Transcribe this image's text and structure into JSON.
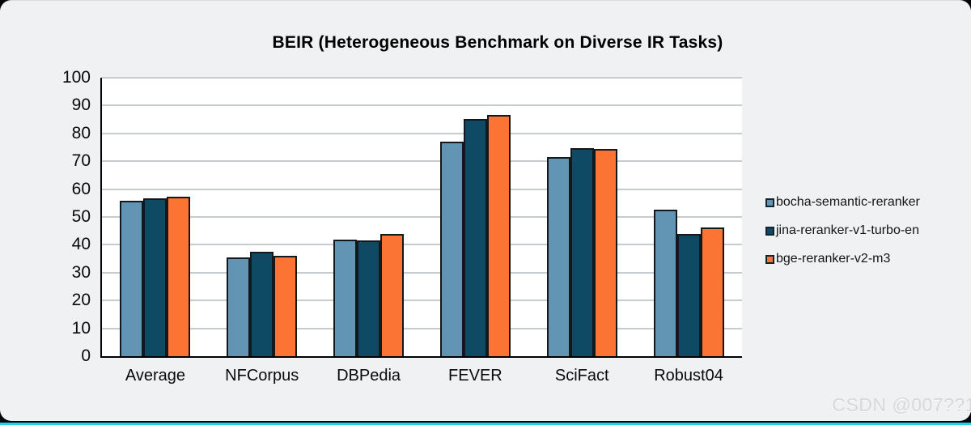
{
  "page": {
    "watermark": "CSDN @007??1"
  },
  "chart_data": {
    "type": "bar",
    "title": "BEIR (Heterogeneous Benchmark on Diverse IR Tasks)",
    "categories": [
      "Average",
      "NFCorpus",
      "DBPedia",
      "FEVER",
      "SciFact",
      "Robust04"
    ],
    "series": [
      {
        "name": "bocha-semantic-reranker",
        "color": "#6295b3",
        "values": [
          55.7,
          35.5,
          42.0,
          77.0,
          71.6,
          52.5
        ]
      },
      {
        "name": "jina-reranker-v1-turbo-en",
        "color": "#0e4a63",
        "values": [
          56.6,
          37.4,
          41.5,
          85.3,
          74.7,
          43.9
        ]
      },
      {
        "name": "bge-reranker-v2-m3",
        "color": "#fb7433",
        "values": [
          57.4,
          36.0,
          43.8,
          86.5,
          74.3,
          46.3
        ]
      }
    ],
    "xlabel": "",
    "ylabel": "",
    "ylim": [
      0,
      100
    ],
    "ytick_step": 10,
    "grid": true,
    "legend_position": "right",
    "plot_background": "#ffffff",
    "gridline_color": "#c8cbcd",
    "axis_color": "#000000",
    "bar_border_color": "#13181d"
  }
}
